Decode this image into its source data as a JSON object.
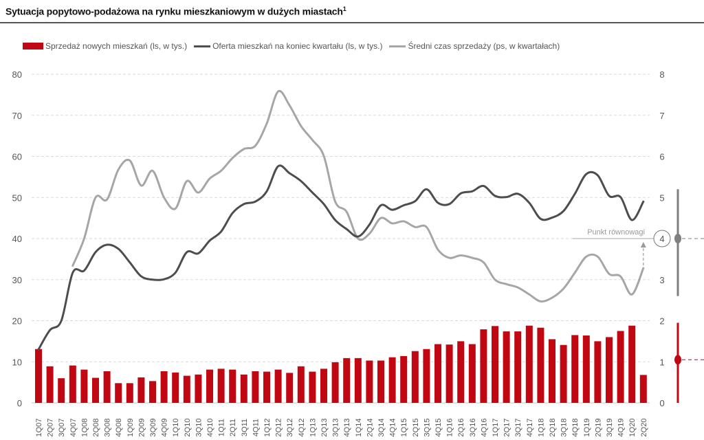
{
  "chart_data": {
    "type": "bar+line",
    "title": "Sytuacja popytowo-podażowa na rynku mieszkaniowym w dużych miastach",
    "title_superscript": "1",
    "legend_position": "top",
    "grid": true,
    "categories": [
      "1Q07",
      "2Q07",
      "3Q07",
      "4Q07",
      "1Q08",
      "2Q08",
      "3Q08",
      "4Q08",
      "1Q09",
      "2Q09",
      "3Q09",
      "4Q09",
      "1Q10",
      "2Q10",
      "3Q10",
      "4Q10",
      "1Q11",
      "2Q11",
      "3Q11",
      "4Q11",
      "1Q12",
      "2Q12",
      "3Q12",
      "4Q12",
      "1Q13",
      "2Q13",
      "3Q13",
      "4Q13",
      "1Q14",
      "2Q14",
      "3Q14",
      "4Q14",
      "1Q15",
      "2Q15",
      "3Q15",
      "4Q15",
      "1Q16",
      "2Q16",
      "3Q16",
      "4Q16",
      "1Q17",
      "2Q17",
      "3Q17",
      "4Q17",
      "1Q18",
      "2Q18",
      "3Q18",
      "4Q18",
      "1Q19",
      "2Q19",
      "3Q19",
      "4Q19",
      "1Q20",
      "2Q20"
    ],
    "y_left": {
      "range": [
        0,
        80
      ],
      "ticks": [
        "0",
        "10",
        "20",
        "30",
        "40",
        "50",
        "60",
        "70",
        "80"
      ]
    },
    "y_right": {
      "range": [
        0,
        8
      ],
      "ticks": [
        "0",
        "1",
        "2",
        "3",
        "4",
        "5",
        "6",
        "7",
        "8"
      ]
    },
    "series": [
      {
        "name": "Sprzedaż nowych mieszkań (ls, w tys.)",
        "type": "bar",
        "axis": "left",
        "color": "#c00712",
        "values": [
          13.1,
          8.9,
          6.0,
          9.1,
          8.1,
          6.1,
          7.7,
          4.8,
          4.8,
          6.2,
          5.3,
          7.7,
          7.4,
          6.6,
          6.9,
          8.1,
          8.3,
          8.1,
          6.9,
          7.7,
          7.6,
          8.1,
          7.3,
          8.9,
          7.6,
          8.3,
          9.9,
          10.9,
          10.9,
          10.3,
          10.3,
          11.1,
          11.4,
          12.6,
          13.1,
          14.3,
          14.2,
          15.0,
          14.3,
          17.9,
          18.7,
          17.4,
          17.4,
          18.8,
          18.3,
          15.5,
          14.1,
          16.5,
          16.4,
          15.0,
          16.0,
          17.5,
          18.8,
          6.8
        ]
      },
      {
        "name": "Oferta mieszkań na koniec kwartału (ls, w tys.)",
        "type": "line",
        "axis": "left",
        "color": "#4d4d4d",
        "values": [
          13.0,
          17.7,
          20.0,
          31.7,
          32.2,
          36.7,
          38.5,
          37.5,
          34.2,
          30.8,
          30.0,
          30.1,
          31.7,
          36.7,
          36.4,
          39.5,
          41.7,
          46.2,
          48.4,
          49.0,
          51.5,
          57.6,
          55.9,
          54.0,
          51.2,
          48.4,
          44.5,
          42.3,
          40.5,
          43.4,
          48.1,
          47.0,
          48.1,
          49.1,
          52.0,
          48.7,
          48.4,
          51.0,
          51.5,
          52.8,
          50.4,
          50.1,
          50.9,
          48.7,
          44.8,
          45.1,
          46.7,
          50.9,
          55.7,
          55.4,
          50.4,
          50.1,
          44.5,
          49.0
        ]
      },
      {
        "name": "Średni czas sprzedaży (ps, w kwartałach)",
        "type": "line",
        "axis": "right",
        "color": "#a6a6a6",
        "values": [
          null,
          null,
          null,
          3.34,
          4.0,
          5.0,
          4.95,
          5.68,
          5.9,
          5.29,
          5.65,
          5.0,
          4.73,
          5.4,
          5.12,
          5.46,
          5.65,
          5.96,
          6.18,
          6.26,
          6.8,
          7.58,
          7.24,
          6.74,
          6.4,
          6.01,
          4.9,
          4.65,
          4.0,
          4.12,
          4.5,
          4.37,
          4.42,
          4.28,
          4.28,
          3.73,
          3.53,
          3.59,
          3.53,
          3.42,
          3.0,
          2.89,
          2.81,
          2.64,
          2.47,
          2.56,
          2.78,
          3.17,
          3.56,
          3.56,
          3.14,
          3.08,
          2.64,
          3.28
        ]
      }
    ],
    "annotations": {
      "equilibrium_label": "Punkt równowagi",
      "equilibrium_value": "4",
      "equilibrium_level": 4,
      "time_range": {
        "low": 2.6,
        "high": 5.2,
        "marker": 4
      },
      "sales_range": {
        "low": 0,
        "high": 1.95,
        "marker": 1.05
      }
    }
  }
}
